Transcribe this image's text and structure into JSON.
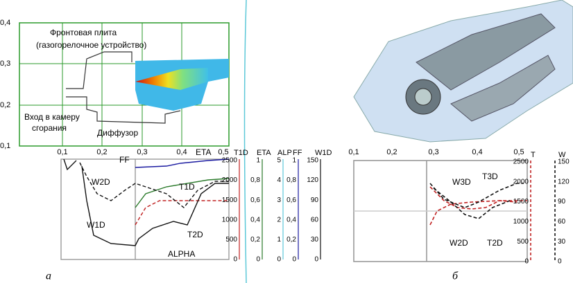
{
  "panel_a": {
    "top_yticks": [
      "0,4",
      "0,3",
      "0,2",
      "0,1"
    ],
    "top_xticks": [
      "0,1",
      "0,2",
      "0,3",
      "0,4",
      "0,5"
    ],
    "annotations": [
      "Фронтовая плита",
      "(газогорелочное устройство)",
      "Вход в камеру",
      "сгорания",
      "Диффузор"
    ],
    "curve_labels": [
      "FF",
      "W2D",
      "ETA",
      "T1D",
      "T2D",
      "W1D",
      "ALPHA"
    ],
    "axes": [
      {
        "title": "T1D",
        "ticks": [
          "2500",
          "2000",
          "1500",
          "1000",
          "500",
          "0"
        ]
      },
      {
        "title": "ETA",
        "ticks": [
          "1",
          "0,8",
          "0,6",
          "0,4",
          "0,2",
          "0"
        ]
      },
      {
        "title": "ALP",
        "ticks": [
          "5",
          "4",
          "3",
          "2",
          "1",
          "0"
        ]
      },
      {
        "title": "FF",
        "ticks": [
          "1",
          "0,8",
          "0,6",
          "0,4",
          "0,2",
          "0"
        ]
      },
      {
        "title": "W1D",
        "ticks": [
          "150",
          "120",
          "90",
          "60",
          "30",
          "0"
        ]
      }
    ],
    "caption": "а"
  },
  "panel_b": {
    "top_xticks": [
      "0,1",
      "0,2",
      "0,3",
      "0,4",
      "0,5"
    ],
    "curve_labels": [
      "W3D",
      "T3D",
      "W2D",
      "T2D"
    ],
    "axes": [
      {
        "title": "T",
        "ticks": [
          "2500",
          "2000",
          "1500",
          "1000",
          "500",
          "0"
        ]
      },
      {
        "title": "W",
        "ticks": [
          "150",
          "120",
          "90",
          "60",
          "30",
          "0"
        ]
      }
    ],
    "caption": "б"
  }
}
